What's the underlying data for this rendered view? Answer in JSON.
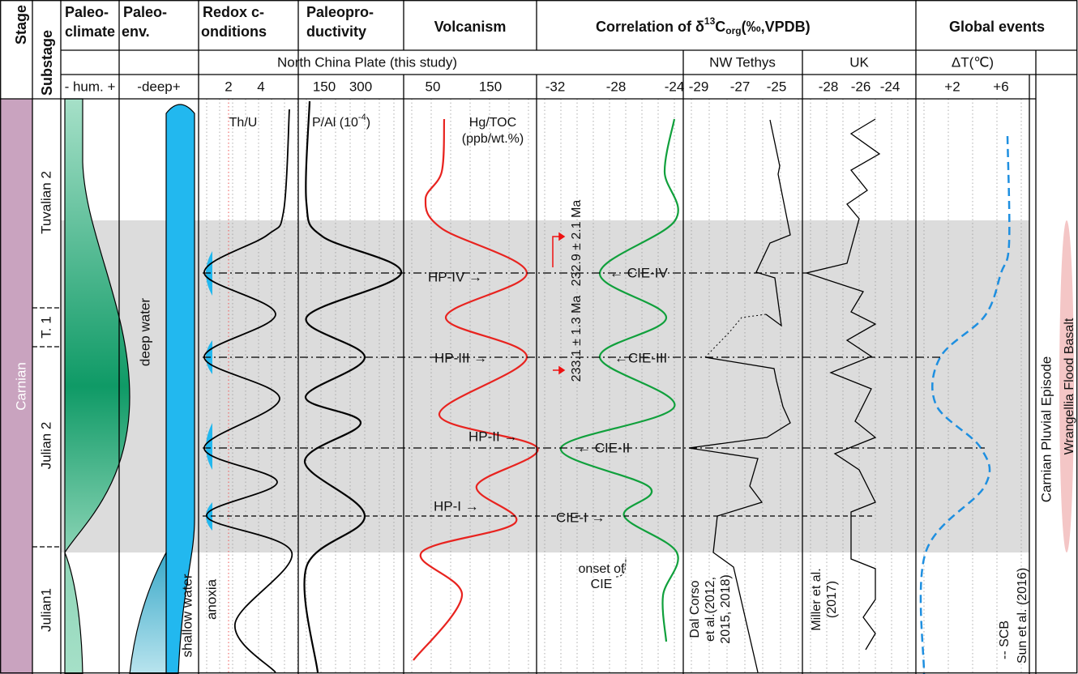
{
  "header": {
    "stage": "Stage",
    "substage": "Substage",
    "paleoclimate": [
      "Paleo-",
      "climate"
    ],
    "paleoenv": [
      "Paleo-",
      "env."
    ],
    "redox": [
      "Redox c-",
      "onditions"
    ],
    "productivity": [
      "Paleopro-",
      "ductivity"
    ],
    "volcanism": "Volcanism",
    "correlation": [
      "Correlation of δ",
      "13",
      "C",
      "org",
      "(‰,VPDB)"
    ],
    "global": "Global events"
  },
  "subheader": {
    "north_china": "North China Plate (this study)",
    "nw_tethys": "NW Tethys",
    "uk": "UK",
    "delta_t": "ΔT(℃)"
  },
  "axes": {
    "paleoclimate": "- hum. +",
    "paleoenv": "-deep+",
    "redox": [
      "2",
      "4"
    ],
    "productivity": [
      "150",
      "300"
    ],
    "volcanism": [
      "50",
      "150"
    ],
    "d13c": [
      "-32",
      "-28",
      "-24"
    ],
    "nw_tethys": [
      "-29",
      "-27",
      "-25"
    ],
    "uk": [
      "-28",
      "-26",
      "-24"
    ],
    "delta_t": [
      "+2",
      "+6"
    ]
  },
  "stage": "Carnian",
  "substages": [
    "Tuvalian 2",
    "T. 1",
    "Julian 2",
    "Julian1"
  ],
  "labels": {
    "deep_water": "deep water",
    "shallow_water": "shallow water",
    "anoxia": "anoxia",
    "thu": "Th/U",
    "pal": [
      "P/Al (10",
      "-4",
      ")"
    ],
    "hgtoc": [
      "Hg/TOC",
      "(ppb/wt.%)"
    ],
    "hp": [
      "HP-IV →",
      "HP-III →",
      "HP-II →",
      "HP-I →"
    ],
    "cie": [
      "← CIE-IV",
      "←CIE-III",
      "← CIE-II",
      "CIE-I →"
    ],
    "ages": [
      "232.9 ± 2.1 Ma",
      "233.1 ± 1.3 Ma"
    ],
    "onset": [
      "onset of",
      "CIE"
    ],
    "dal_corso": [
      "Dal Corso",
      "et al.(2012,",
      "2015, 2018)"
    ],
    "miller": [
      "Miller et al.",
      "(2017)"
    ],
    "scb": "-- SCB",
    "sun": "Sun et al. (2016)",
    "cpe": "Carnian Pluvial Episode",
    "wfb": "Wrangellia Flood Basalt"
  }
}
